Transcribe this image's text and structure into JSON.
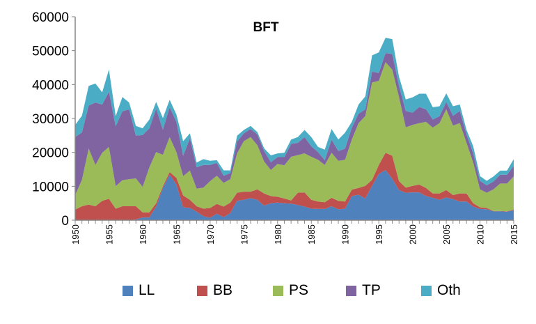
{
  "chart_data": {
    "type": "area",
    "stacked": true,
    "title": "BFT",
    "xlabel": "",
    "ylabel": "",
    "ylim": [
      0,
      60000
    ],
    "yticks": [
      0,
      10000,
      20000,
      30000,
      40000,
      50000,
      60000
    ],
    "xlim": [
      1950,
      2015
    ],
    "xticks": [
      1950,
      1955,
      1960,
      1965,
      1970,
      1975,
      1980,
      1985,
      1990,
      1995,
      2000,
      2005,
      2010,
      2015
    ],
    "grid": false,
    "legend_position": "bottom",
    "x": [
      1950,
      1951,
      1952,
      1953,
      1954,
      1955,
      1956,
      1957,
      1958,
      1959,
      1960,
      1961,
      1962,
      1963,
      1964,
      1965,
      1966,
      1967,
      1968,
      1969,
      1970,
      1971,
      1972,
      1973,
      1974,
      1975,
      1976,
      1977,
      1978,
      1979,
      1980,
      1981,
      1982,
      1983,
      1984,
      1985,
      1986,
      1987,
      1988,
      1989,
      1990,
      1991,
      1992,
      1993,
      1994,
      1995,
      1996,
      1997,
      1998,
      1999,
      2000,
      2001,
      2002,
      2003,
      2004,
      2005,
      2006,
      2007,
      2008,
      2009,
      2010,
      2011,
      2012,
      2013,
      2014,
      2015
    ],
    "series": [
      {
        "name": "LL",
        "color": "#4F81BD",
        "values": [
          0,
          0,
          0,
          0,
          0,
          0,
          0,
          0,
          0,
          200,
          800,
          800,
          4000,
          9500,
          13400,
          10500,
          3800,
          3600,
          2500,
          1200,
          700,
          1900,
          900,
          2100,
          5700,
          6000,
          6500,
          6000,
          4300,
          5000,
          5200,
          5000,
          4900,
          4500,
          4000,
          3400,
          3300,
          3300,
          4100,
          3200,
          3400,
          7100,
          7500,
          6400,
          10100,
          13600,
          14800,
          12200,
          8900,
          8100,
          8200,
          8200,
          7100,
          6600,
          6000,
          6700,
          6200,
          5500,
          5500,
          4000,
          3300,
          3200,
          2600,
          2600,
          2500,
          2900
        ]
      },
      {
        "name": "BB",
        "color": "#C0504D",
        "values": [
          3100,
          4100,
          4600,
          4100,
          5700,
          6300,
          3400,
          4100,
          4100,
          3900,
          1500,
          1500,
          1000,
          500,
          800,
          2000,
          3500,
          2400,
          1600,
          2200,
          2900,
          2900,
          3100,
          3100,
          2400,
          2400,
          1900,
          3100,
          3600,
          2100,
          1700,
          1400,
          900,
          3600,
          4200,
          2600,
          2200,
          2000,
          2500,
          2500,
          2100,
          1900,
          2000,
          3700,
          1800,
          2700,
          5100,
          6800,
          2600,
          1500,
          1900,
          2300,
          2400,
          1300,
          1900,
          2200,
          1200,
          2400,
          2400,
          1000,
          500,
          400,
          100,
          100,
          100,
          200
        ]
      },
      {
        "name": "PS",
        "color": "#9BBB59",
        "values": [
          4300,
          7800,
          16500,
          12200,
          14200,
          15300,
          6600,
          7700,
          8000,
          8200,
          7500,
          13300,
          15100,
          9300,
          10300,
          7600,
          5700,
          8600,
          5200,
          6200,
          7900,
          8300,
          7000,
          6900,
          11600,
          14900,
          16100,
          13000,
          9400,
          7700,
          9700,
          9800,
          12900,
          11100,
          11500,
          12700,
          12300,
          11000,
          13300,
          11800,
          12300,
          14800,
          19100,
          20600,
          28700,
          24800,
          26700,
          25400,
          24800,
          17800,
          18000,
          18100,
          19500,
          19400,
          20700,
          23800,
          20500,
          20700,
          14900,
          12000,
          5300,
          4500,
          6400,
          8100,
          8200,
          9800
        ]
      },
      {
        "name": "TP",
        "color": "#8064A2",
        "values": [
          17100,
          14000,
          12700,
          18400,
          14200,
          16300,
          17700,
          20300,
          20600,
          12600,
          15300,
          11500,
          12800,
          7400,
          8800,
          8900,
          6000,
          9600,
          6300,
          6700,
          4800,
          3800,
          2100,
          1800,
          3500,
          2300,
          2400,
          3200,
          3100,
          2300,
          2000,
          2400,
          3800,
          3600,
          4800,
          3100,
          2300,
          1400,
          3900,
          2900,
          3300,
          3500,
          2800,
          2000,
          3200,
          2300,
          2700,
          4600,
          3300,
          4800,
          3600,
          4800,
          3700,
          2400,
          2100,
          2200,
          2900,
          3600,
          2500,
          2700,
          2500,
          2200,
          2300,
          2600,
          2600,
          3100
        ]
      },
      {
        "name": "Oth",
        "color": "#4BACC6",
        "values": [
          3600,
          4900,
          5800,
          5600,
          3600,
          6500,
          3000,
          4200,
          2000,
          2900,
          2000,
          2600,
          2000,
          3400,
          2200,
          2200,
          4300,
          1400,
          1400,
          1700,
          1200,
          800,
          1600,
          800,
          1700,
          1000,
          900,
          700,
          800,
          2000,
          1100,
          1300,
          1300,
          1700,
          2100,
          2700,
          1500,
          3100,
          3100,
          3400,
          4700,
          1700,
          2700,
          3800,
          4800,
          6100,
          4500,
          4400,
          2700,
          3400,
          4500,
          3900,
          4600,
          3600,
          2900,
          2500,
          2800,
          1900,
          1300,
          2100,
          1400,
          1300,
          1500,
          1200,
          1200,
          2000
        ]
      }
    ]
  }
}
